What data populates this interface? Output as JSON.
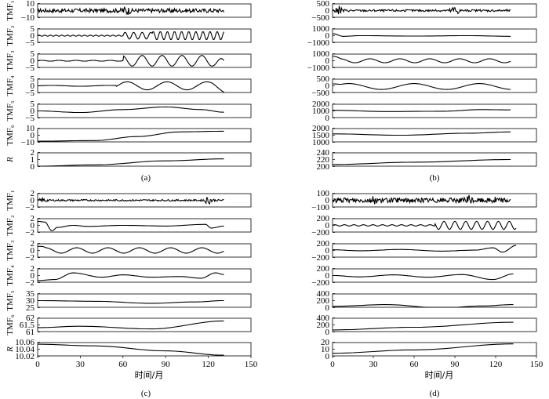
{
  "chart_data": [
    {
      "type": "line",
      "panel": "(a)",
      "caption": "(a)",
      "xlim": [
        0,
        150
      ],
      "x_ticks": [],
      "xlabel": "",
      "rows": [
        {
          "ylabel": "TMF₁",
          "yticks": [
            "10",
            "0",
            "−10"
          ],
          "ylim": [
            -10,
            10
          ],
          "series": {
            "kind": "burst",
            "amp": 3,
            "n": 260,
            "bursts": [
              {
                "x": 62,
                "a": 9
              },
              {
                "x": 95,
                "a": 5
              }
            ]
          }
        },
        {
          "ylabel": "TMF₂",
          "yticks": [
            "5",
            "0",
            "−5"
          ],
          "ylim": [
            -5,
            5
          ],
          "series": {
            "kind": "osc",
            "segments": [
              {
                "x0": 0,
                "x1": 60,
                "amp": 0.4,
                "period": 4
              },
              {
                "x0": 60,
                "x1": 80,
                "amp": 2.5,
                "period": 6
              },
              {
                "x0": 80,
                "x1": 131,
                "amp": 3,
                "period": 5
              }
            ],
            "offset": 0
          }
        },
        {
          "ylabel": "TMF₃",
          "yticks": [
            "5",
            "0",
            "−5"
          ],
          "ylim": [
            -5,
            5
          ],
          "series": {
            "kind": "osc",
            "segments": [
              {
                "x0": 0,
                "x1": 60,
                "amp": 0.3,
                "period": 12
              },
              {
                "x0": 60,
                "x1": 131,
                "amp": 4,
                "period": 14
              }
            ],
            "offset": 0,
            "end_drop": -3
          }
        },
        {
          "ylabel": "TMF₄",
          "yticks": [
            "5",
            "0",
            "−5"
          ],
          "ylim": [
            -5,
            5
          ],
          "series": {
            "kind": "osc",
            "segments": [
              {
                "x0": 0,
                "x1": 55,
                "amp": 0.3,
                "period": 40
              },
              {
                "x0": 55,
                "x1": 131,
                "amp": 3,
                "period": 28
              }
            ],
            "offset": 0,
            "end_drop": -2
          }
        },
        {
          "ylabel": "TMF₅",
          "yticks": [
            "5",
            "0",
            "−5"
          ],
          "ylim": [
            -5,
            5
          ],
          "series": {
            "kind": "points",
            "pts": [
              [
                0,
                0
              ],
              [
                30,
                -1.2
              ],
              [
                60,
                1
              ],
              [
                90,
                3
              ],
              [
                115,
                1
              ],
              [
                131,
                -1
              ]
            ]
          }
        },
        {
          "ylabel": "TMF₆",
          "yticks": [
            "10",
            "0",
            "−10"
          ],
          "ylim": [
            -10,
            10
          ],
          "series": {
            "kind": "points",
            "pts": [
              [
                0,
                -9
              ],
              [
                40,
                -8
              ],
              [
                70,
                -2
              ],
              [
                100,
                5
              ],
              [
                131,
                6
              ]
            ]
          }
        },
        {
          "ylabel": "R",
          "yticks": [
            "2",
            "1",
            "0"
          ],
          "ylim": [
            0,
            2
          ],
          "series": {
            "kind": "points",
            "pts": [
              [
                0,
                0
              ],
              [
                40,
                0.2
              ],
              [
                90,
                0.8
              ],
              [
                131,
                1.1
              ]
            ]
          }
        }
      ]
    },
    {
      "type": "line",
      "panel": "(b)",
      "caption": "(b)",
      "xlim": [
        0,
        150
      ],
      "x_ticks": [],
      "xlabel": "",
      "rows": [
        {
          "ylabel": "",
          "yticks": [
            "500",
            "0",
            "−500"
          ],
          "ylim": [
            -500,
            500
          ],
          "series": {
            "kind": "burst",
            "amp": 80,
            "n": 240,
            "bursts": [
              {
                "x": 5,
                "a": 350
              },
              {
                "x": 90,
                "a": 450
              }
            ]
          }
        },
        {
          "ylabel": "",
          "yticks": [
            "1000",
            "0",
            "−1000"
          ],
          "ylim": [
            -1000,
            1000
          ],
          "series": {
            "kind": "points",
            "pts": [
              [
                0,
                300
              ],
              [
                8,
                -100
              ],
              [
                20,
                0
              ],
              [
                60,
                -60
              ],
              [
                100,
                0
              ],
              [
                131,
                -100
              ]
            ]
          }
        },
        {
          "ylabel": "",
          "yticks": [
            "1000",
            "0",
            "−1000"
          ],
          "ylim": [
            -1000,
            1000
          ],
          "series": {
            "kind": "osc",
            "segments": [
              {
                "x0": 0,
                "x1": 131,
                "amp": 300,
                "period": 22
              }
            ],
            "offset": 0,
            "start_spike": 700
          }
        },
        {
          "ylabel": "",
          "yticks": [
            "500",
            "0",
            "−500"
          ],
          "ylim": [
            -500,
            500
          ],
          "series": {
            "kind": "osc",
            "segments": [
              {
                "x0": 0,
                "x1": 131,
                "amp": 220,
                "period": 48
              }
            ],
            "offset": -50,
            "start_spike": 200
          }
        },
        {
          "ylabel": "",
          "yticks": [
            "2000",
            "1000",
            "0"
          ],
          "ylim": [
            0,
            2000
          ],
          "series": {
            "kind": "points",
            "pts": [
              [
                0,
                1100
              ],
              [
                40,
                900
              ],
              [
                80,
                950
              ],
              [
                110,
                1200
              ],
              [
                131,
                1150
              ]
            ]
          }
        },
        {
          "ylabel": "",
          "yticks": [
            "2000",
            "1500",
            "1000"
          ],
          "ylim": [
            1000,
            2000
          ],
          "series": {
            "kind": "points",
            "pts": [
              [
                0,
                1600
              ],
              [
                50,
                1500
              ],
              [
                100,
                1650
              ],
              [
                131,
                1750
              ]
            ]
          }
        },
        {
          "ylabel": "",
          "yticks": [
            "240",
            "220",
            "200"
          ],
          "ylim": [
            200,
            240
          ],
          "series": {
            "kind": "points",
            "pts": [
              [
                0,
                205
              ],
              [
                60,
                212
              ],
              [
                131,
                220
              ]
            ]
          }
        }
      ]
    },
    {
      "type": "line",
      "panel": "(c)",
      "caption": "(c)",
      "xlim": [
        0,
        150
      ],
      "x_ticks": [
        "0",
        "30",
        "60",
        "90",
        "120",
        "150"
      ],
      "xlabel": "时间/月",
      "rows": [
        {
          "ylabel": "TMF₁",
          "yticks": [
            "2",
            "0",
            "−2"
          ],
          "ylim": [
            -2,
            2
          ],
          "series": {
            "kind": "burst",
            "amp": 0.25,
            "n": 260,
            "bursts": [
              {
                "x": 4,
                "a": 0.8
              },
              {
                "x": 120,
                "a": 1.3
              }
            ]
          }
        },
        {
          "ylabel": "TMF₂",
          "yticks": [
            "2",
            "0",
            "−2"
          ],
          "ylim": [
            -2,
            2
          ],
          "series": {
            "kind": "points",
            "pts": [
              [
                0,
                1.2
              ],
              [
                5,
                1.0
              ],
              [
                10,
                -1.6
              ],
              [
                14,
                -0.6
              ],
              [
                25,
                0
              ],
              [
                35,
                -0.3
              ],
              [
                60,
                0
              ],
              [
                90,
                -0.2
              ],
              [
                118,
                0.3
              ],
              [
                122,
                -0.8
              ],
              [
                131,
                -0.2
              ]
            ]
          }
        },
        {
          "ylabel": "TMF₃",
          "yticks": [
            "2",
            "0",
            "−2"
          ],
          "ylim": [
            -2,
            2
          ],
          "series": {
            "kind": "osc",
            "segments": [
              {
                "x0": 0,
                "x1": 131,
                "amp": 0.8,
                "period": 22
              }
            ],
            "offset": 0,
            "start_spike": 1.2
          }
        },
        {
          "ylabel": "TMF₄",
          "yticks": [
            "2",
            "0",
            "−2"
          ],
          "ylim": [
            -2,
            2
          ],
          "series": {
            "kind": "points",
            "pts": [
              [
                0,
                -1.5
              ],
              [
                12,
                -1.2
              ],
              [
                25,
                0.8
              ],
              [
                45,
                -0.5
              ],
              [
                60,
                0.2
              ],
              [
                80,
                -0.5
              ],
              [
                100,
                -0.3
              ],
              [
                115,
                -0.8
              ],
              [
                125,
                0.8
              ],
              [
                131,
                0.3
              ]
            ]
          }
        },
        {
          "ylabel": "TMF₅",
          "yticks": [
            "35",
            "30",
            "25"
          ],
          "ylim": [
            25,
            35
          ],
          "series": {
            "kind": "points",
            "pts": [
              [
                0,
                30
              ],
              [
                40,
                29.5
              ],
              [
                80,
                28
              ],
              [
                110,
                29
              ],
              [
                131,
                30
              ]
            ]
          }
        },
        {
          "ylabel": "TMF₆",
          "yticks": [
            "62",
            "61.5",
            "61"
          ],
          "ylim": [
            61,
            62
          ],
          "series": {
            "kind": "points",
            "pts": [
              [
                0,
                61.3
              ],
              [
                30,
                61.4
              ],
              [
                80,
                61.2
              ],
              [
                131,
                61.8
              ]
            ]
          }
        },
        {
          "ylabel": "R",
          "yticks": [
            "10.06",
            "10.04",
            "10.02"
          ],
          "ylim": [
            10.02,
            10.06
          ],
          "series": {
            "kind": "points",
            "pts": [
              [
                0,
                10.055
              ],
              [
                40,
                10.05
              ],
              [
                90,
                10.035
              ],
              [
                131,
                10.022
              ]
            ]
          }
        }
      ]
    },
    {
      "type": "line",
      "panel": "(d)",
      "caption": "(d)",
      "xlim": [
        0,
        150
      ],
      "x_ticks": [
        "0",
        "30",
        "60",
        "90",
        "120",
        "150"
      ],
      "xlabel": "时间/月",
      "rows": [
        {
          "ylabel": "",
          "yticks": [
            "100",
            "0",
            "−100"
          ],
          "ylim": [
            -100,
            100
          ],
          "series": {
            "kind": "burst",
            "amp": 35,
            "n": 300,
            "bursts": [
              {
                "x": 30,
                "a": 70
              },
              {
                "x": 100,
                "a": 90
              },
              {
                "x": 120,
                "a": 80
              }
            ]
          }
        },
        {
          "ylabel": "",
          "yticks": [
            "200",
            "0",
            "−200"
          ],
          "ylim": [
            -200,
            200
          ],
          "series": {
            "kind": "osc",
            "segments": [
              {
                "x0": 0,
                "x1": 75,
                "amp": 20,
                "period": 7
              },
              {
                "x0": 75,
                "x1": 135,
                "amp": 120,
                "period": 8
              }
            ],
            "offset": 0
          }
        },
        {
          "ylabel": "",
          "yticks": [
            "200",
            "0",
            "−200"
          ],
          "ylim": [
            -200,
            200
          ],
          "series": {
            "kind": "points",
            "pts": [
              [
                0,
                20
              ],
              [
                20,
                -10
              ],
              [
                50,
                30
              ],
              [
                80,
                -20
              ],
              [
                105,
                10
              ],
              [
                118,
                80
              ],
              [
                125,
                -50
              ],
              [
                135,
                150
              ]
            ]
          }
        },
        {
          "ylabel": "",
          "yticks": [
            "200",
            "0",
            "−200"
          ],
          "ylim": [
            -200,
            200
          ],
          "series": {
            "kind": "points",
            "pts": [
              [
                0,
                0
              ],
              [
                20,
                -40
              ],
              [
                45,
                20
              ],
              [
                70,
                -50
              ],
              [
                95,
                30
              ],
              [
                118,
                -120
              ],
              [
                133,
                50
              ]
            ]
          }
        },
        {
          "ylabel": "",
          "yticks": [
            "400",
            "200",
            "0"
          ],
          "ylim": [
            0,
            400
          ],
          "series": {
            "kind": "points",
            "pts": [
              [
                0,
                30
              ],
              [
                40,
                80
              ],
              [
                80,
                -20
              ],
              [
                110,
                40
              ],
              [
                133,
                80
              ]
            ]
          }
        },
        {
          "ylabel": "",
          "yticks": [
            "400",
            "200",
            "0"
          ],
          "ylim": [
            0,
            400
          ],
          "series": {
            "kind": "points",
            "pts": [
              [
                0,
                50
              ],
              [
                60,
                130
              ],
              [
                133,
                280
              ]
            ]
          }
        },
        {
          "ylabel": "",
          "yticks": [
            "20",
            "10",
            "0"
          ],
          "ylim": [
            0,
            20
          ],
          "series": {
            "kind": "points",
            "pts": [
              [
                0,
                4
              ],
              [
                60,
                9
              ],
              [
                133,
                18
              ]
            ]
          }
        }
      ]
    }
  ]
}
